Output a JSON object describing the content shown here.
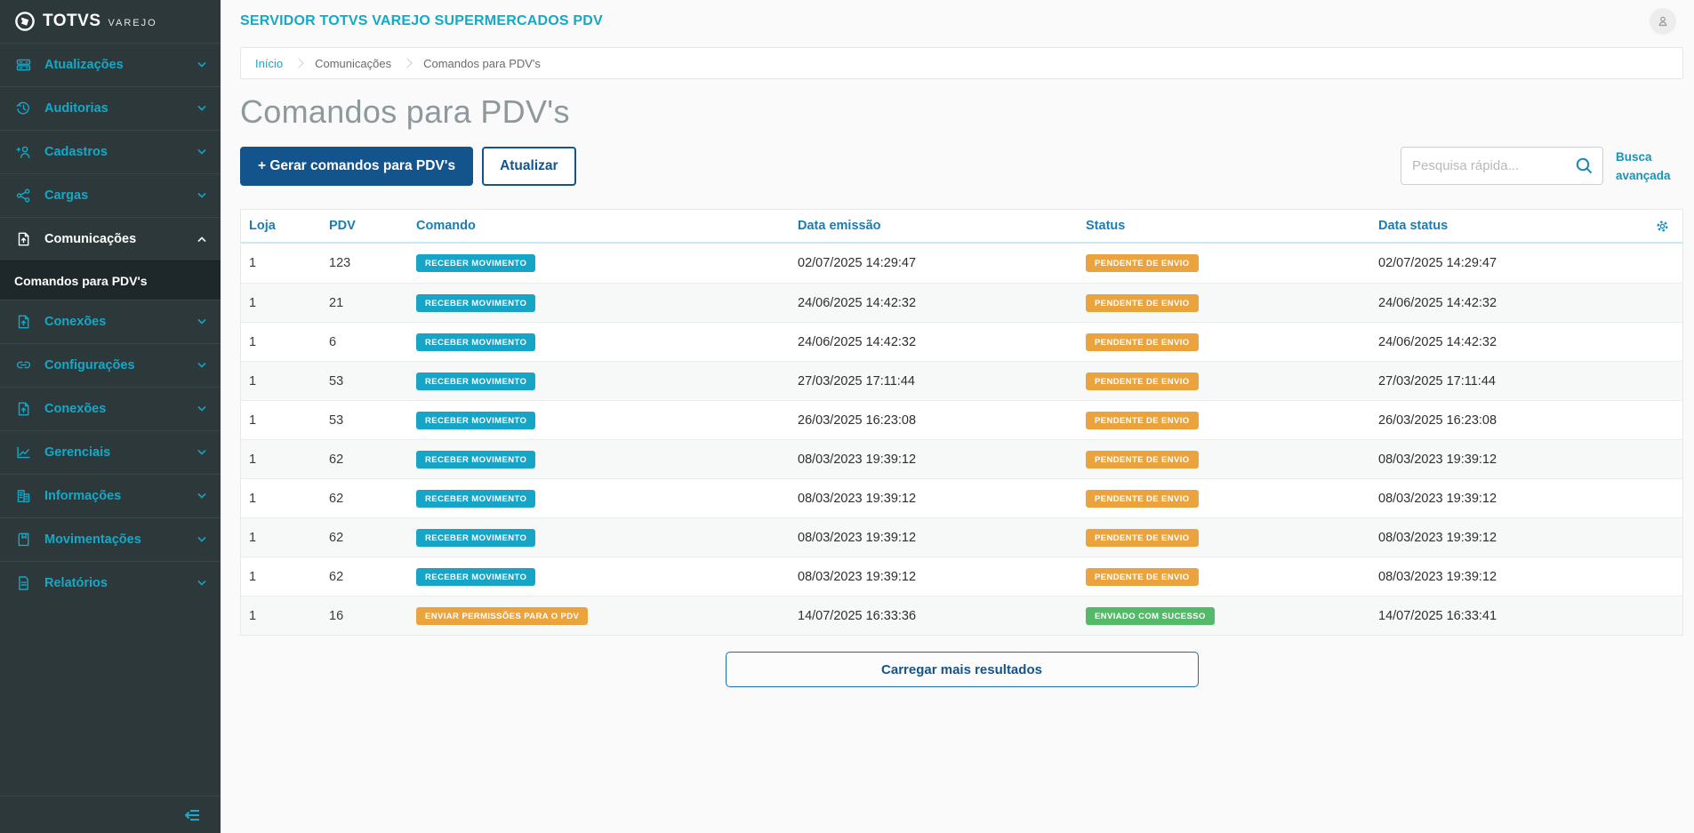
{
  "sidebar": {
    "logo": {
      "brand": "TOTVS",
      "sub": "VAREJO"
    },
    "items": [
      {
        "label": "Atualizações",
        "icon": "server-icon",
        "active": false,
        "expanded": false
      },
      {
        "label": "Auditorias",
        "icon": "history-icon",
        "active": false,
        "expanded": false
      },
      {
        "label": "Cadastros",
        "icon": "user-add-icon",
        "active": false,
        "expanded": false
      },
      {
        "label": "Cargas",
        "icon": "share-icon",
        "active": false,
        "expanded": false
      },
      {
        "label": "Comunicações",
        "icon": "doc-up-icon",
        "active": true,
        "expanded": true,
        "children": [
          "Comandos para PDV's"
        ]
      },
      {
        "label": "Conexões",
        "icon": "doc-up-icon",
        "active": false,
        "expanded": false
      },
      {
        "label": "Configurações",
        "icon": "link-icon",
        "active": false,
        "expanded": false
      },
      {
        "label": "Conexões",
        "icon": "doc-up-icon",
        "active": false,
        "expanded": false
      },
      {
        "label": "Gerenciais",
        "icon": "chart-icon",
        "active": false,
        "expanded": false
      },
      {
        "label": "Informações",
        "icon": "building-icon",
        "active": false,
        "expanded": false
      },
      {
        "label": "Movimentações",
        "icon": "book-icon",
        "active": false,
        "expanded": false
      },
      {
        "label": "Relatórios",
        "icon": "report-icon",
        "active": false,
        "expanded": false
      }
    ]
  },
  "header": {
    "title": "SERVIDOR TOTVS VAREJO SUPERMERCADOS PDV"
  },
  "breadcrumb": [
    "Início",
    "Comunicações",
    "Comandos para PDV's"
  ],
  "page": {
    "title": "Comandos para PDV's",
    "generate_button": "+  Gerar comandos para PDV's",
    "refresh_button": "Atualizar",
    "search_placeholder": "Pesquisa rápida...",
    "advanced_search": "Busca avançada",
    "load_more": "Carregar mais resultados"
  },
  "table": {
    "columns": [
      "Loja",
      "PDV",
      "Comando",
      "Data emissão",
      "Status",
      "Data status"
    ],
    "rows": [
      {
        "loja": "1",
        "pdv": "123",
        "comando": "RECEBER MOVIMENTO",
        "comando_type": "cyan",
        "emissao": "02/07/2025 14:29:47",
        "status": "PENDENTE DE ENVIO",
        "status_type": "orange",
        "data_status": "02/07/2025 14:29:47"
      },
      {
        "loja": "1",
        "pdv": "21",
        "comando": "RECEBER MOVIMENTO",
        "comando_type": "cyan",
        "emissao": "24/06/2025 14:42:32",
        "status": "PENDENTE DE ENVIO",
        "status_type": "orange",
        "data_status": "24/06/2025 14:42:32"
      },
      {
        "loja": "1",
        "pdv": "6",
        "comando": "RECEBER MOVIMENTO",
        "comando_type": "cyan",
        "emissao": "24/06/2025 14:42:32",
        "status": "PENDENTE DE ENVIO",
        "status_type": "orange",
        "data_status": "24/06/2025 14:42:32"
      },
      {
        "loja": "1",
        "pdv": "53",
        "comando": "RECEBER MOVIMENTO",
        "comando_type": "cyan",
        "emissao": "27/03/2025 17:11:44",
        "status": "PENDENTE DE ENVIO",
        "status_type": "orange",
        "data_status": "27/03/2025 17:11:44"
      },
      {
        "loja": "1",
        "pdv": "53",
        "comando": "RECEBER MOVIMENTO",
        "comando_type": "cyan",
        "emissao": "26/03/2025 16:23:08",
        "status": "PENDENTE DE ENVIO",
        "status_type": "orange",
        "data_status": "26/03/2025 16:23:08"
      },
      {
        "loja": "1",
        "pdv": "62",
        "comando": "RECEBER MOVIMENTO",
        "comando_type": "cyan",
        "emissao": "08/03/2023 19:39:12",
        "status": "PENDENTE DE ENVIO",
        "status_type": "orange",
        "data_status": "08/03/2023 19:39:12"
      },
      {
        "loja": "1",
        "pdv": "62",
        "comando": "RECEBER MOVIMENTO",
        "comando_type": "cyan",
        "emissao": "08/03/2023 19:39:12",
        "status": "PENDENTE DE ENVIO",
        "status_type": "orange",
        "data_status": "08/03/2023 19:39:12"
      },
      {
        "loja": "1",
        "pdv": "62",
        "comando": "RECEBER MOVIMENTO",
        "comando_type": "cyan",
        "emissao": "08/03/2023 19:39:12",
        "status": "PENDENTE DE ENVIO",
        "status_type": "orange",
        "data_status": "08/03/2023 19:39:12"
      },
      {
        "loja": "1",
        "pdv": "62",
        "comando": "RECEBER MOVIMENTO",
        "comando_type": "cyan",
        "emissao": "08/03/2023 19:39:12",
        "status": "PENDENTE DE ENVIO",
        "status_type": "orange",
        "data_status": "08/03/2023 19:39:12"
      },
      {
        "loja": "1",
        "pdv": "16",
        "comando": "ENVIAR PERMISSÕES PARA O PDV",
        "comando_type": "orange",
        "emissao": "14/07/2025 16:33:36",
        "status": "ENVIADO COM SUCESSO",
        "status_type": "green",
        "data_status": "14/07/2025 16:33:41"
      }
    ]
  },
  "colors": {
    "accent_cyan": "#13a9c7",
    "sidebar_item_cyan": "#1ba8c9",
    "primary_blue": "#14548c",
    "table_header_blue": "#1b7db5",
    "badge_cyan": "#16a5c7",
    "badge_orange": "#eba43d",
    "badge_green": "#55b96a",
    "sidebar_bg": "#2d383b",
    "sidebar_sub_bg": "#1e282a"
  }
}
